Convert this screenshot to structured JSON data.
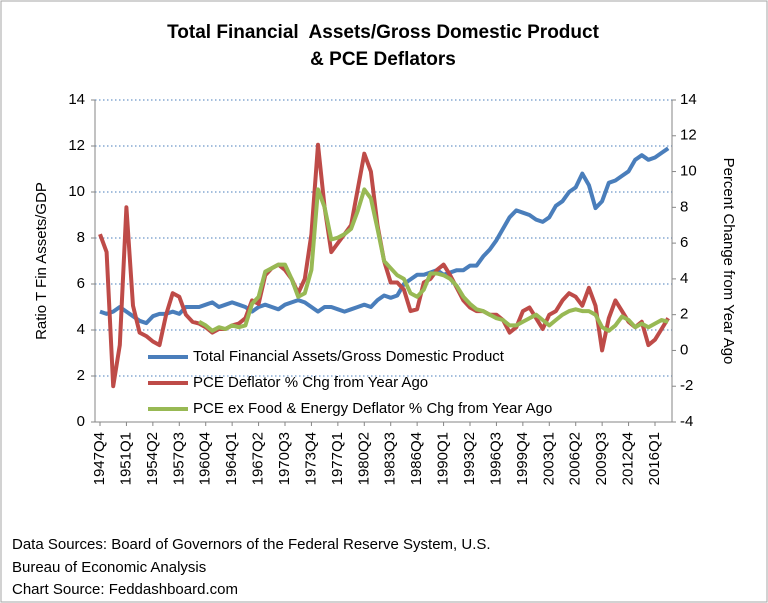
{
  "chart_data": {
    "type": "line",
    "title": [
      "Total Financial  Assets/Gross Domestic Product",
      "& PCE Deflators"
    ],
    "y_label": "Ratio T Fin Assets/GDP",
    "y2_label": "Percent Change from Year Ago",
    "notes": [
      "Data Sources: Board of Governors of the Federal Reserve System, U.S.",
      "Bureau of Economic Analysis",
      "Chart Source: Feddashboard.com"
    ],
    "categories": [
      "1947Q4",
      null,
      null,
      null,
      "1951Q1",
      null,
      null,
      null,
      "1954Q2",
      null,
      null,
      null,
      "1957Q3",
      null,
      null,
      null,
      "1960Q4",
      null,
      null,
      null,
      "1964Q1",
      null,
      null,
      null,
      "1967Q2",
      null,
      null,
      null,
      "1970Q3",
      null,
      null,
      null,
      "1973Q4",
      null,
      null,
      null,
      "1977Q1",
      null,
      null,
      null,
      "1980Q2",
      null,
      null,
      null,
      "1983Q3",
      null,
      null,
      null,
      "1986Q4",
      null,
      null,
      null,
      "1990Q1",
      null,
      null,
      null,
      "1993Q2",
      null,
      null,
      null,
      "1996Q3",
      null,
      null,
      null,
      "1999Q4",
      null,
      null,
      null,
      "2003Q1",
      null,
      null,
      null,
      "2006Q2",
      null,
      null,
      null,
      "2009Q3",
      null,
      null,
      null,
      "2012Q4",
      null,
      null,
      null,
      "2016Q1",
      null,
      null
    ],
    "ylim": [
      0,
      14
    ],
    "yticks": [
      0,
      2,
      4,
      6,
      8,
      10,
      12,
      14
    ],
    "y2lim": [
      -4,
      14
    ],
    "y2ticks": [
      -4,
      -2,
      0,
      2,
      4,
      6,
      8,
      10,
      12,
      14
    ],
    "grid": true,
    "series": [
      {
        "name": "Total Financial Assets/Gross Domestic Product",
        "color": "#4a7ebb",
        "values": [
          4.8,
          4.7,
          4.8,
          5.0,
          4.8,
          4.6,
          4.4,
          4.3,
          4.6,
          4.7,
          4.7,
          4.8,
          4.7,
          5.0,
          5.0,
          5.0,
          5.1,
          5.2,
          5.0,
          5.1,
          5.2,
          5.1,
          5.0,
          4.8,
          5.0,
          5.1,
          5.0,
          4.9,
          5.1,
          5.2,
          5.3,
          5.2,
          5.0,
          4.8,
          5.0,
          5.0,
          4.9,
          4.8,
          4.9,
          5.0,
          5.1,
          5.0,
          5.3,
          5.5,
          5.4,
          5.5,
          6.0,
          6.2,
          6.4,
          6.4,
          6.5,
          6.6,
          6.4,
          6.5,
          6.6,
          6.6,
          6.8,
          6.8,
          7.2,
          7.5,
          7.9,
          8.4,
          8.9,
          9.2,
          9.1,
          9.0,
          8.8,
          8.7,
          8.9,
          9.4,
          9.6,
          10.0,
          10.2,
          10.8,
          10.3,
          9.3,
          9.6,
          10.4,
          10.5,
          10.7,
          10.9,
          11.4,
          11.6,
          11.4,
          11.5,
          11.7,
          11.9
        ]
      },
      {
        "name": "PCE Deflator % Chg from Year Ago",
        "color": "#be4b48",
        "axis": "y2",
        "values": [
          6.5,
          5.5,
          -2.0,
          0.3,
          8.0,
          2.5,
          1.0,
          0.8,
          0.5,
          0.3,
          2.0,
          3.2,
          3.0,
          2.0,
          1.6,
          1.5,
          1.3,
          1.0,
          1.2,
          1.2,
          1.4,
          1.5,
          1.8,
          2.8,
          2.6,
          4.2,
          4.6,
          4.8,
          4.5,
          4.0,
          3.2,
          4.0,
          6.5,
          11.5,
          8.0,
          5.5,
          6.0,
          6.5,
          7.0,
          9.0,
          11.0,
          10.0,
          7.0,
          5.0,
          3.8,
          3.8,
          3.4,
          2.2,
          2.3,
          3.8,
          4.0,
          4.5,
          4.8,
          4.2,
          3.5,
          2.8,
          2.4,
          2.2,
          2.2,
          2.0,
          2.0,
          1.7,
          1.0,
          1.3,
          2.2,
          2.4,
          1.8,
          1.2,
          2.0,
          2.2,
          2.8,
          3.2,
          3.0,
          2.5,
          3.5,
          2.5,
          0.0,
          1.8,
          2.8,
          2.2,
          1.6,
          1.3,
          1.6,
          0.3,
          0.6,
          1.2,
          1.8
        ]
      },
      {
        "name": "PCE ex Food & Energy Deflator % Chg from Year Ago",
        "color": "#98b954",
        "axis": "y2",
        "values": [
          null,
          null,
          null,
          null,
          null,
          null,
          null,
          null,
          null,
          null,
          null,
          null,
          null,
          null,
          null,
          1.6,
          1.4,
          1.1,
          1.3,
          1.2,
          1.4,
          1.3,
          1.4,
          2.6,
          3.0,
          4.4,
          4.6,
          4.8,
          4.8,
          4.0,
          3.0,
          3.2,
          4.5,
          9.0,
          8.0,
          6.2,
          6.3,
          6.5,
          6.8,
          7.8,
          9.0,
          8.5,
          6.8,
          5.0,
          4.6,
          4.2,
          4.0,
          3.2,
          3.0,
          3.4,
          4.3,
          4.3,
          4.2,
          4.0,
          3.6,
          3.0,
          2.6,
          2.3,
          2.2,
          2.0,
          1.8,
          1.7,
          1.4,
          1.4,
          1.6,
          1.8,
          2.0,
          1.7,
          1.4,
          1.7,
          2.0,
          2.2,
          2.3,
          2.2,
          2.2,
          2.0,
          1.3,
          1.1,
          1.4,
          1.9,
          1.7,
          1.3,
          1.5,
          1.3,
          1.5,
          1.7,
          1.6
        ]
      }
    ]
  }
}
